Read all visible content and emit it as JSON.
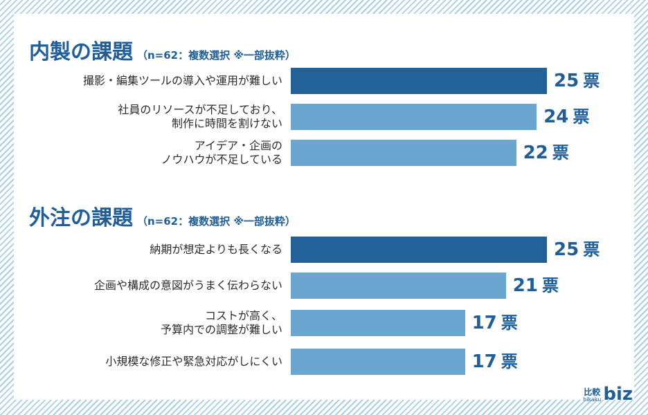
{
  "chart_data": [
    {
      "type": "bar",
      "orientation": "horizontal",
      "title": "内製の課題",
      "subtitle": "（n=62：複数選択 ※一部抜粋）",
      "categories": [
        [
          "撮影・編集ツールの導入や運用が難しい"
        ],
        [
          "社員のリソースが不足しており、",
          "制作に時間を割けない"
        ],
        [
          "アイデア・企画の",
          "ノウハウが不足している"
        ]
      ],
      "values": [
        25,
        24,
        22
      ],
      "unit": "票",
      "highlight_color": "#23619b",
      "bar_color": "#6aa6cf"
    },
    {
      "type": "bar",
      "orientation": "horizontal",
      "title": "外注の課題",
      "subtitle": "（n=62：複数選択 ※一部抜粋）",
      "categories": [
        [
          "納期が想定よりも長くなる"
        ],
        [
          "企画や構成の意図がうまく伝わらない"
        ],
        [
          "コストが高く、",
          "予算内での調整が難しい"
        ],
        [
          "小規模な修正や緊急対応がしにくい"
        ]
      ],
      "values": [
        25,
        21,
        17,
        17
      ],
      "unit": "票",
      "highlight_color": "#23619b",
      "bar_color": "#6aa6cf"
    }
  ],
  "logo": {
    "kanji": "比較",
    "romaji": "hikaku",
    "text": "biz"
  }
}
